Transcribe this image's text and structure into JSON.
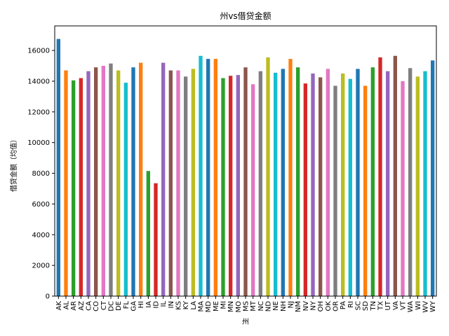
{
  "chart_data": {
    "type": "bar",
    "title": "州vs借贷金额",
    "xlabel": "州",
    "ylabel": "借贷金额（均值）",
    "ylim": [
      0,
      17600
    ],
    "yticks": [
      0,
      2000,
      4000,
      6000,
      8000,
      10000,
      12000,
      14000,
      16000
    ],
    "grid": false,
    "categories": [
      "AK",
      "AL",
      "AR",
      "AZ",
      "CA",
      "CO",
      "CT",
      "DC",
      "DE",
      "FL",
      "GA",
      "HI",
      "IA",
      "ID",
      "IL",
      "IN",
      "KS",
      "KY",
      "LA",
      "MA",
      "MD",
      "ME",
      "MI",
      "MN",
      "MO",
      "MS",
      "MT",
      "NC",
      "ND",
      "NE",
      "NH",
      "NJ",
      "NM",
      "NV",
      "NY",
      "OH",
      "OK",
      "OR",
      "PA",
      "RI",
      "SC",
      "SD",
      "TN",
      "TX",
      "UT",
      "VA",
      "VT",
      "WA",
      "WI",
      "WV",
      "WY"
    ],
    "values": [
      16750,
      14700,
      14050,
      14200,
      14650,
      14900,
      15000,
      15150,
      14700,
      13900,
      14900,
      15200,
      8150,
      7350,
      15200,
      14700,
      14700,
      14300,
      14800,
      15650,
      15450,
      15450,
      14200,
      14350,
      14400,
      14900,
      13800,
      14650,
      15550,
      14550,
      14800,
      15450,
      14900,
      13850,
      14500,
      14250,
      14800,
      13700,
      14500,
      14150,
      14800,
      13700,
      14900,
      15550,
      14650,
      15650,
      14000,
      14850,
      14300,
      14650,
      15350
    ],
    "colors": [
      "#1f77b4",
      "#ff7f0e",
      "#2ca02c",
      "#d62728",
      "#9467bd",
      "#8c564b",
      "#e377c2",
      "#7f7f7f",
      "#bcbd22",
      "#17becf"
    ]
  }
}
